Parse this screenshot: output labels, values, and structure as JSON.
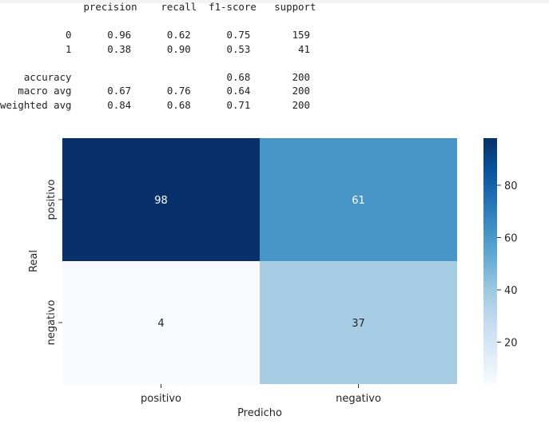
{
  "report": {
    "header": [
      "precision",
      "recall",
      "f1-score",
      "support"
    ],
    "rows": [
      {
        "label": "0",
        "values": [
          "0.96",
          "0.62",
          "0.75",
          "159"
        ]
      },
      {
        "label": "1",
        "values": [
          "0.38",
          "0.90",
          "0.53",
          "41"
        ]
      },
      {
        "label": "accuracy",
        "values": [
          "",
          "",
          "0.68",
          "200"
        ]
      },
      {
        "label": "macro avg",
        "values": [
          "0.67",
          "0.76",
          "0.64",
          "200"
        ]
      },
      {
        "label": "weighted avg",
        "values": [
          "0.84",
          "0.68",
          "0.71",
          "200"
        ]
      }
    ]
  },
  "chart_data": {
    "type": "heatmap",
    "title": "",
    "xlabel": "Predicho",
    "ylabel": "Real",
    "x_categories": [
      "positivo",
      "negativo"
    ],
    "y_categories": [
      "positivo",
      "negativo"
    ],
    "values": [
      [
        98,
        61
      ],
      [
        4,
        37
      ]
    ],
    "colorbar": {
      "min": 4,
      "max": 98,
      "ticks": [
        20,
        40,
        60,
        80
      ],
      "colormap": "Blues",
      "low_color": "#f7fbff",
      "high_color": "#08306b"
    },
    "grid": false
  }
}
